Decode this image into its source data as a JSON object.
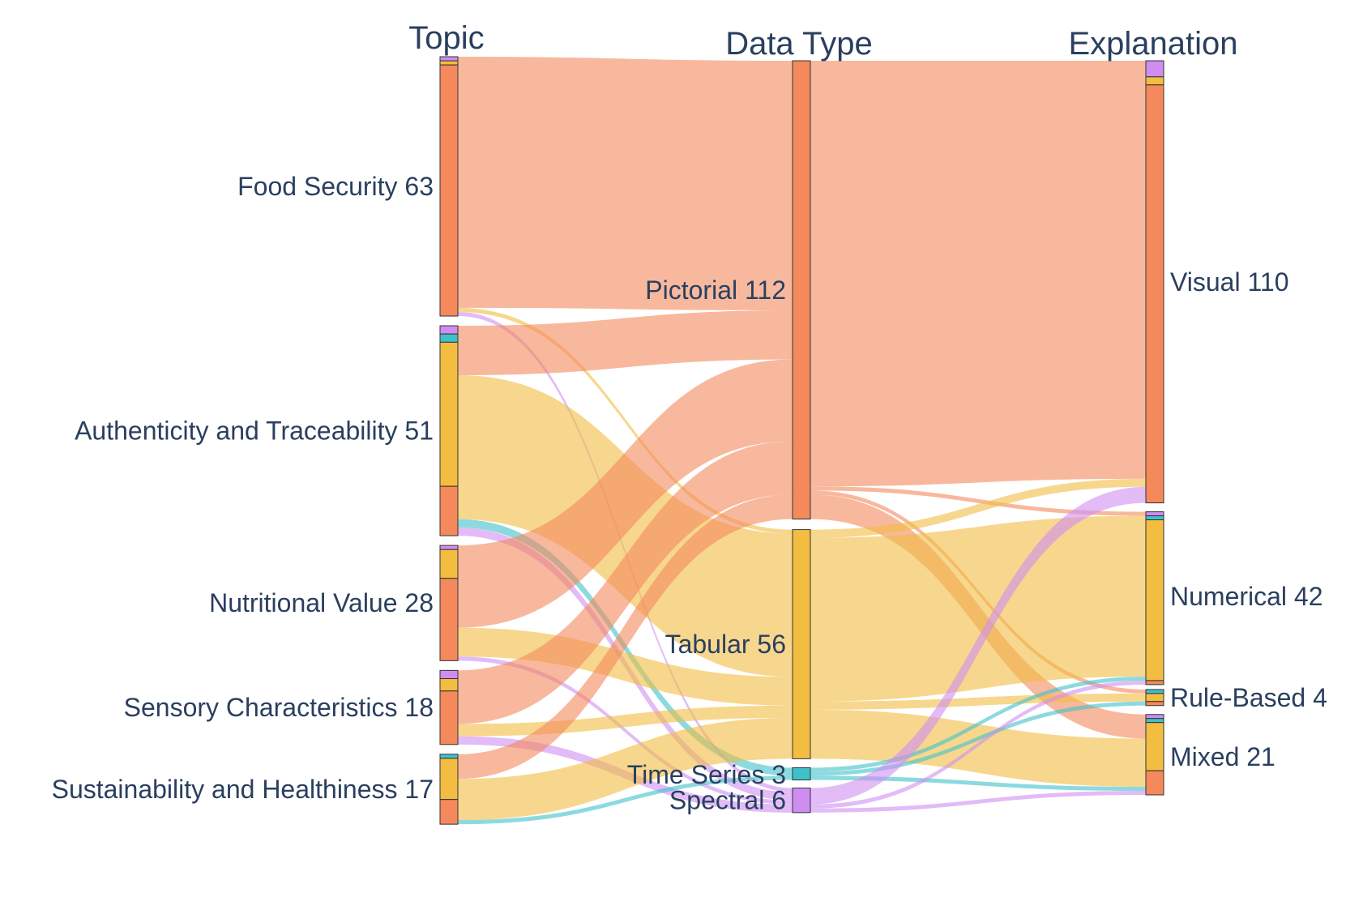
{
  "chart_data": {
    "type": "sankey",
    "column_titles": [
      "Topic",
      "Data Type",
      "Explanation"
    ],
    "colors": {
      "Pictorial": "#f4895b",
      "Tabular": "#f2bd41",
      "Time Series": "#3fc1c9",
      "Spectral": "#cf8df2",
      "node_border": "#333333"
    },
    "link_opacity": 0.6,
    "columns": [
      [
        {
          "id": "food_security",
          "name": "Food Security",
          "value": 63,
          "label": "Food Security 63"
        },
        {
          "id": "authenticity",
          "name": "Authenticity and Traceability",
          "value": 51,
          "label": "Authenticity and Traceability 51"
        },
        {
          "id": "nutritional",
          "name": "Nutritional Value",
          "value": 28,
          "label": "Nutritional Value 28"
        },
        {
          "id": "sensory",
          "name": "Sensory Characteristics",
          "value": 18,
          "label": "Sensory Characteristics 18"
        },
        {
          "id": "sustainability",
          "name": "Sustainability and Healthiness",
          "value": 17,
          "label": "Sustainability and Healthiness 17"
        }
      ],
      [
        {
          "id": "pictorial",
          "name": "Pictorial",
          "value": 112,
          "label": "Pictorial 112"
        },
        {
          "id": "tabular",
          "name": "Tabular",
          "value": 56,
          "label": "Tabular 56"
        },
        {
          "id": "timeseries",
          "name": "Time Series",
          "value": 3,
          "label": "Time Series 3"
        },
        {
          "id": "spectral",
          "name": "Spectral",
          "value": 6,
          "label": "Spectral 6"
        }
      ],
      [
        {
          "id": "visual",
          "name": "Visual",
          "value": 110,
          "label": "Visual 110"
        },
        {
          "id": "numerical",
          "name": "Numerical",
          "value": 42,
          "label": "Numerical 42"
        },
        {
          "id": "rulebased",
          "name": "Rule-Based",
          "value": 4,
          "label": "Rule-Based 4"
        },
        {
          "id": "mixed",
          "name": "Mixed",
          "value": 21,
          "label": "Mixed 21"
        }
      ]
    ],
    "links": [
      {
        "source": "food_security",
        "target": "pictorial",
        "value": 61
      },
      {
        "source": "food_security",
        "target": "tabular",
        "value": 1
      },
      {
        "source": "food_security",
        "target": "spectral",
        "value": 1
      },
      {
        "source": "authenticity",
        "target": "pictorial",
        "value": 12
      },
      {
        "source": "authenticity",
        "target": "tabular",
        "value": 35
      },
      {
        "source": "authenticity",
        "target": "timeseries",
        "value": 2
      },
      {
        "source": "authenticity",
        "target": "spectral",
        "value": 2
      },
      {
        "source": "nutritional",
        "target": "pictorial",
        "value": 20
      },
      {
        "source": "nutritional",
        "target": "tabular",
        "value": 7
      },
      {
        "source": "nutritional",
        "target": "spectral",
        "value": 1
      },
      {
        "source": "sensory",
        "target": "pictorial",
        "value": 13
      },
      {
        "source": "sensory",
        "target": "tabular",
        "value": 3
      },
      {
        "source": "sensory",
        "target": "spectral",
        "value": 2
      },
      {
        "source": "sustainability",
        "target": "pictorial",
        "value": 6
      },
      {
        "source": "sustainability",
        "target": "tabular",
        "value": 10
      },
      {
        "source": "sustainability",
        "target": "timeseries",
        "value": 1
      },
      {
        "source": "pictorial",
        "target": "visual",
        "value": 104
      },
      {
        "source": "pictorial",
        "target": "numerical",
        "value": 1
      },
      {
        "source": "pictorial",
        "target": "rulebased",
        "value": 1
      },
      {
        "source": "pictorial",
        "target": "mixed",
        "value": 6
      },
      {
        "source": "tabular",
        "target": "visual",
        "value": 2
      },
      {
        "source": "tabular",
        "target": "numerical",
        "value": 40
      },
      {
        "source": "tabular",
        "target": "rulebased",
        "value": 2
      },
      {
        "source": "tabular",
        "target": "mixed",
        "value": 12
      },
      {
        "source": "timeseries",
        "target": "numerical",
        "value": 1
      },
      {
        "source": "timeseries",
        "target": "rulebased",
        "value": 1
      },
      {
        "source": "timeseries",
        "target": "mixed",
        "value": 1
      },
      {
        "source": "spectral",
        "target": "visual",
        "value": 4
      },
      {
        "source": "spectral",
        "target": "numerical",
        "value": 1
      },
      {
        "source": "spectral",
        "target": "mixed",
        "value": 1
      }
    ]
  }
}
